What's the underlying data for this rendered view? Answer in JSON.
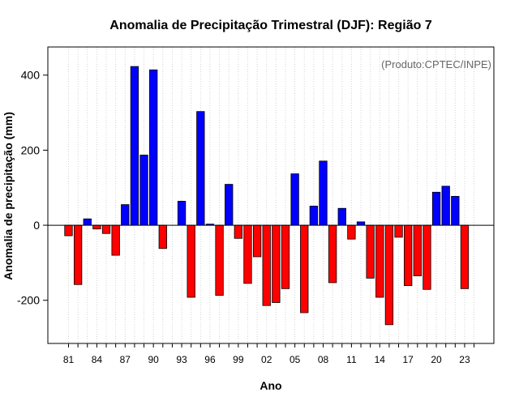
{
  "chart_data": {
    "type": "bar",
    "title": "Anomalia de Precipitação Trimestral (DJF): Região 7",
    "xlabel": "Ano",
    "ylabel": "Anomalia de precipitação (mm)",
    "annotation": "(Produto:CPTEC/INPE)",
    "ylim": [
      -315,
      475
    ],
    "yticks": [
      -200,
      0,
      200,
      400
    ],
    "grid": true,
    "legend": "none",
    "positive_color": "#0000ff",
    "negative_color": "#ff0000",
    "categories": [
      "1981",
      "1982",
      "1983",
      "1984",
      "1985",
      "1986",
      "1987",
      "1988",
      "1989",
      "1990",
      "1991",
      "1992",
      "1993",
      "1994",
      "1995",
      "1996",
      "1997",
      "1998",
      "1999",
      "2000",
      "2001",
      "2002",
      "2003",
      "2004",
      "2005",
      "2006",
      "2007",
      "2008",
      "2009",
      "2010",
      "2011",
      "2012",
      "2013",
      "2014",
      "2015",
      "2016",
      "2017",
      "2018",
      "2019",
      "2020",
      "2021",
      "2022",
      "2023"
    ],
    "xtick_labels": [
      {
        "year": "1981",
        "label": "81"
      },
      {
        "year": "1984",
        "label": "84"
      },
      {
        "year": "1987",
        "label": "87"
      },
      {
        "year": "1990",
        "label": "90"
      },
      {
        "year": "1993",
        "label": "93"
      },
      {
        "year": "1996",
        "label": "96"
      },
      {
        "year": "1999",
        "label": "99"
      },
      {
        "year": "2002",
        "label": "02"
      },
      {
        "year": "2005",
        "label": "05"
      },
      {
        "year": "2008",
        "label": "08"
      },
      {
        "year": "2011",
        "label": "11"
      },
      {
        "year": "2014",
        "label": "14"
      },
      {
        "year": "2017",
        "label": "17"
      },
      {
        "year": "2020",
        "label": "20"
      },
      {
        "year": "2023",
        "label": "23"
      }
    ],
    "values": [
      -28,
      -158,
      17,
      -10,
      -22,
      -80,
      55,
      423,
      187,
      414,
      -62,
      0,
      64,
      -192,
      303,
      3,
      -187,
      109,
      -35,
      -155,
      -84,
      -214,
      -206,
      -169,
      137,
      -233,
      51,
      171,
      -153,
      45,
      -37,
      9,
      -141,
      -192,
      -265,
      -32,
      -161,
      -135,
      -171,
      88,
      104,
      77,
      -169
    ]
  }
}
